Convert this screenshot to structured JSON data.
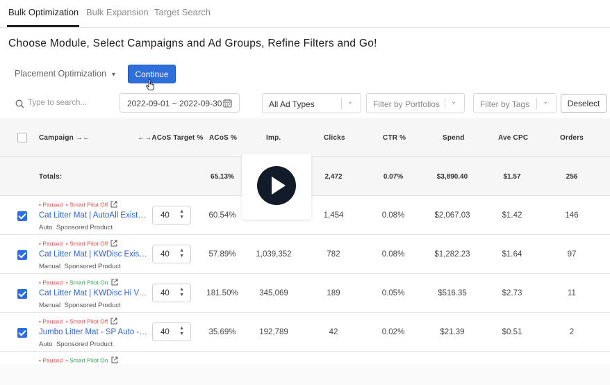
{
  "tabs": [
    {
      "label": "Bulk Optimization",
      "active": true
    },
    {
      "label": "Bulk Expansion",
      "active": false
    },
    {
      "label": "Target Search",
      "active": false
    }
  ],
  "headline": "Choose Module, Select Campaigns and Ad Groups, Refine Filters and Go!",
  "toolbar": {
    "module": "Placement Optimization",
    "continue_label": "Continue",
    "search_placeholder": "Type to search...",
    "date_range": "2022-09-01 ~ 2022-09-30",
    "ad_types": "All Ad Types",
    "portfolios": "Filter by Portfolios",
    "tags": "Filter by Tags",
    "deselect_label": "Deselect"
  },
  "colors": {
    "accent": "#2f6fdb",
    "paused": "#d9534f",
    "pilot_on": "#3aa35b",
    "link": "#2f63c7"
  },
  "table": {
    "headers": {
      "campaign": "Campaign →←",
      "acos_target": "←→ACoS Target %",
      "acos": "ACoS %",
      "imp": "Imp.",
      "clicks": "Clicks",
      "ctr": "CTR %",
      "spend": "Spend",
      "ave_cpc": "Ave CPC",
      "orders": "Orders"
    },
    "totals": {
      "label": "Totals:",
      "acos": "65.13%",
      "imp": "",
      "clicks": "2,472",
      "ctr": "0.07%",
      "spend": "$3,890.40",
      "ave_cpc": "$1.57",
      "orders": "256"
    },
    "rows": [
      {
        "status": "Paused",
        "pilot": "Smart Pilot Off",
        "pilot_on": false,
        "name": "Cat Litter Mat | AutoAll Existin...",
        "targeting": "Auto",
        "ad_type": "Sponsored Product",
        "target": "40",
        "acos": "60.54%",
        "imp": "",
        "clicks": "1,454",
        "ctr": "0.08%",
        "spend": "$2,067.03",
        "cpc": "$1.42",
        "orders": "146"
      },
      {
        "status": "Paused",
        "pilot": "Smart Pilot Off",
        "pilot_on": false,
        "name": "Cat Litter Mat | KWDisc Existin...",
        "targeting": "Manual",
        "ad_type": "Sponsored Product",
        "target": "40",
        "acos": "57.89%",
        "imp": "1,039,352",
        "clicks": "782",
        "ctr": "0.08%",
        "spend": "$1,282.23",
        "cpc": "$1.64",
        "orders": "97"
      },
      {
        "status": "Paused",
        "pilot": "Smart Pilot On",
        "pilot_on": true,
        "name": "Cat Litter Mat | KWDisc Hi Vol ...",
        "targeting": "Manual",
        "ad_type": "Sponsored Product",
        "target": "40",
        "acos": "181.50%",
        "imp": "345,069",
        "clicks": "189",
        "ctr": "0.05%",
        "spend": "$516.35",
        "cpc": "$2.73",
        "orders": "11"
      },
      {
        "status": "Paused",
        "pilot": "Smart Pilot Off",
        "pilot_on": false,
        "name": "Jumbo Litter Mat - SP Auto - S...",
        "targeting": "Auto",
        "ad_type": "Sponsored Product",
        "target": "40",
        "acos": "35.69%",
        "imp": "192,789",
        "clicks": "42",
        "ctr": "0.02%",
        "spend": "$21.39",
        "cpc": "$0.51",
        "orders": "2"
      },
      {
        "status": "Paused",
        "pilot": "Smart Pilot On",
        "pilot_on": true,
        "name": "",
        "targeting": "",
        "ad_type": "",
        "target": "",
        "acos": "",
        "imp": "",
        "clicks": "",
        "ctr": "",
        "spend": "",
        "cpc": "",
        "orders": ""
      }
    ]
  }
}
